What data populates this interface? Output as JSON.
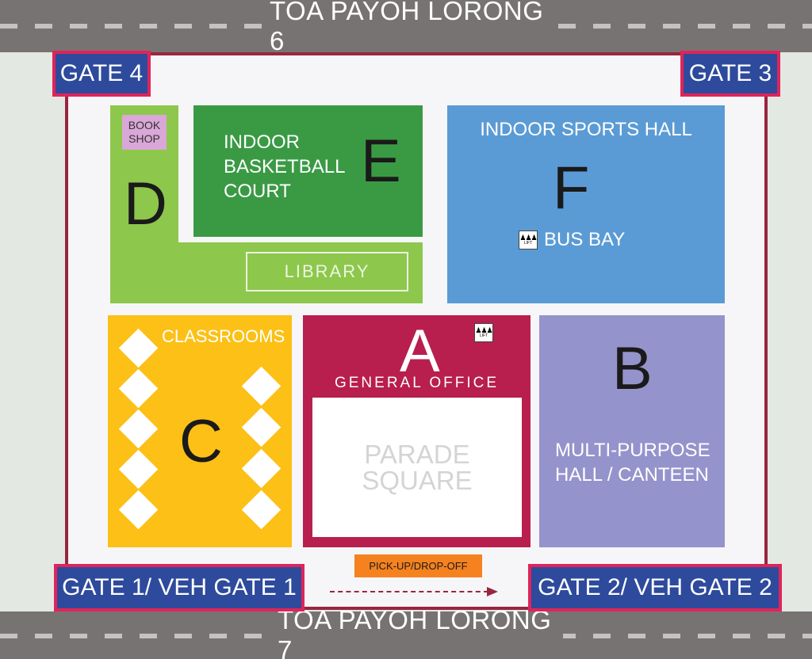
{
  "roads": {
    "top": "TOA PAYOH LORONG 6",
    "bottom": "TOA PAYOH LORONG 7"
  },
  "gates": {
    "gate_4": "GATE 4",
    "gate_3": "GATE 3",
    "gate_1": "GATE 1/ VEH GATE 1",
    "gate_2": "GATE 2/ VEH GATE 2"
  },
  "blocks": {
    "d": {
      "letter": "D",
      "bookshop": "BOOK SHOP",
      "library": "LIBRARY"
    },
    "e": {
      "letter": "E",
      "name": "INDOOR BASKETBALL COURT"
    },
    "f": {
      "letter": "F",
      "name": "INDOOR SPORTS HALL",
      "bus_bay": "BUS BAY"
    },
    "c": {
      "letter": "C",
      "name": "CLASSROOMS"
    },
    "a": {
      "letter": "A",
      "name": "GENERAL OFFICE",
      "parade_square": "PARADE SQUARE"
    },
    "b": {
      "letter": "B",
      "name": "MULTI-PURPOSE HALL / CANTEEN"
    }
  },
  "lift_icon": {
    "label": "LIFT"
  },
  "pickup": "PICK-UP/DROP-OFF",
  "colors": {
    "road": "#787373",
    "gate": "#2e4a9c",
    "gate_border": "#e0245a",
    "compound_border": "#98263f",
    "block_a": "#b81e4e",
    "block_b": "#9593cb",
    "block_c": "#fcc016",
    "block_d": "#8dc74c",
    "block_e": "#3a9a44",
    "block_f": "#5b9bd5",
    "pickup": "#f5821f"
  }
}
